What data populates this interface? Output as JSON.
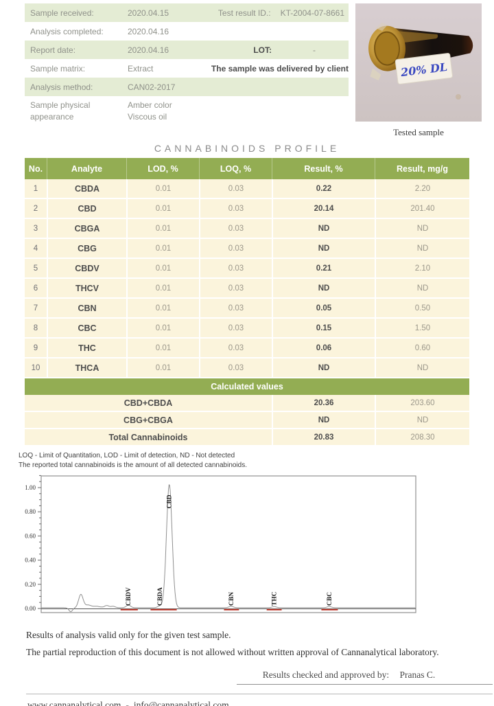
{
  "info": {
    "rows": [
      {
        "label": "Sample received:",
        "value": "2020.04.15",
        "extra_label": "Test result ID.:",
        "extra_value": "KT-2004-07-8661"
      },
      {
        "label": "Analysis completed:",
        "value": "2020.04.16"
      },
      {
        "label": "Report date:",
        "value": "2020.04.16",
        "extra_label": "LOT:",
        "extra_value": "-"
      },
      {
        "label": "Sample matrix:",
        "value": "Extract",
        "extra_note": "The sample was delivered by client"
      },
      {
        "label": "Analysis method:",
        "value": "CAN02-2017"
      },
      {
        "label_line1": "Sample physical",
        "label_line2": "appearance",
        "value_line1": "Amber color",
        "value_line2": "Viscous oil"
      }
    ]
  },
  "photo": {
    "caption": "Tested sample",
    "tube_label": "20% DL"
  },
  "title": "CANNABINOIDS PROFILE",
  "table": {
    "headers": [
      "No.",
      "Analyte",
      "LOD, %",
      "LOQ, %",
      "Result, %",
      "Result, mg/g"
    ],
    "rows": [
      [
        "1",
        "CBDA",
        "0.01",
        "0.03",
        "0.22",
        "2.20"
      ],
      [
        "2",
        "CBD",
        "0.01",
        "0.03",
        "20.14",
        "201.40"
      ],
      [
        "3",
        "CBGA",
        "0.01",
        "0.03",
        "ND",
        "ND"
      ],
      [
        "4",
        "CBG",
        "0.01",
        "0.03",
        "ND",
        "ND"
      ],
      [
        "5",
        "CBDV",
        "0.01",
        "0.03",
        "0.21",
        "2.10"
      ],
      [
        "6",
        "THCV",
        "0.01",
        "0.03",
        "ND",
        "ND"
      ],
      [
        "7",
        "CBN",
        "0.01",
        "0.03",
        "0.05",
        "0.50"
      ],
      [
        "8",
        "CBC",
        "0.01",
        "0.03",
        "0.15",
        "1.50"
      ],
      [
        "9",
        "THC",
        "0.01",
        "0.03",
        "0.06",
        "0.60"
      ],
      [
        "10",
        "THCA",
        "0.01",
        "0.03",
        "ND",
        "ND"
      ]
    ]
  },
  "calculated": {
    "title": "Calculated values",
    "rows": [
      {
        "label": "CBD+CBDA",
        "pct": "20.36",
        "mgg": "203.60"
      },
      {
        "label": "CBG+CBGA",
        "pct": "ND",
        "mgg": "ND"
      },
      {
        "label": "Total Cannabinoids",
        "pct": "20.83",
        "mgg": "208.30"
      }
    ]
  },
  "footnotes": {
    "line1": "LOQ - Limit of Quantitation, LOD - Limit of detection, ND - Not detected",
    "line2": "The reported total cannabinoids is the amount of all detected cannabinoids."
  },
  "chart_data": {
    "type": "line",
    "title": "",
    "xlabel": "",
    "ylabel": "",
    "ylim": [
      -0.035,
      1.12
    ],
    "yticks": [
      0.0,
      0.2,
      0.4,
      0.6,
      0.8,
      1.0
    ],
    "ytick_labels": [
      "0.00",
      "0.20",
      "0.40",
      "0.60",
      "0.80",
      "1.00"
    ],
    "grid": false,
    "legend": "none",
    "line_color": "#8f8f8f",
    "baseline_color": "#c0392b",
    "peaks": [
      {
        "label": "",
        "x": 0.106,
        "height": 0.11,
        "width": 0.006
      },
      {
        "label": "",
        "x": 0.125,
        "height": 0.022,
        "width": 0.008
      },
      {
        "label": "",
        "x": 0.148,
        "height": 0.012,
        "width": 0.01
      },
      {
        "label": "",
        "x": 0.175,
        "height": 0.018,
        "width": 0.006
      },
      {
        "label": "",
        "x": 0.192,
        "height": 0.012,
        "width": 0.006
      },
      {
        "label": "CBDV",
        "x": 0.233,
        "height": 0.022,
        "width": 0.006
      },
      {
        "label": "CBDA",
        "x": 0.317,
        "height": 0.015,
        "width": 0.006
      },
      {
        "label": "CBD",
        "x": 0.342,
        "height": 1.02,
        "width": 0.0075
      },
      {
        "label": "CBN",
        "x": 0.507,
        "height": 0.012,
        "width": 0.006
      },
      {
        "label": "THC",
        "x": 0.622,
        "height": 0.01,
        "width": 0.006
      },
      {
        "label": "CBC",
        "x": 0.769,
        "height": 0.01,
        "width": 0.006
      }
    ],
    "dip": {
      "x": 0.079,
      "depth": 0.032,
      "width": 0.005
    },
    "integration_segments": [
      [
        0.212,
        0.258
      ],
      [
        0.292,
        0.362
      ],
      [
        0.488,
        0.528
      ],
      [
        0.602,
        0.642
      ],
      [
        0.748,
        0.792
      ]
    ]
  },
  "footer": {
    "line1": "Results of analysis valid only for the given test sample.",
    "line2": "The partial reproduction of this document is not allowed without written approval of Cannanalytical laboratory.",
    "approved_label": "Results checked and approved by:",
    "approved_name": "Pranas C.",
    "website": "www.cannanalytical.com",
    "separator": "-",
    "email": "info@cannanalytical.com"
  },
  "colors": {
    "header_green": "#93ad53",
    "row_cream": "#fbf4dc",
    "info_green": "#e4ecd4",
    "peak_red": "#c0392b",
    "label_blue": "#3947c0"
  }
}
